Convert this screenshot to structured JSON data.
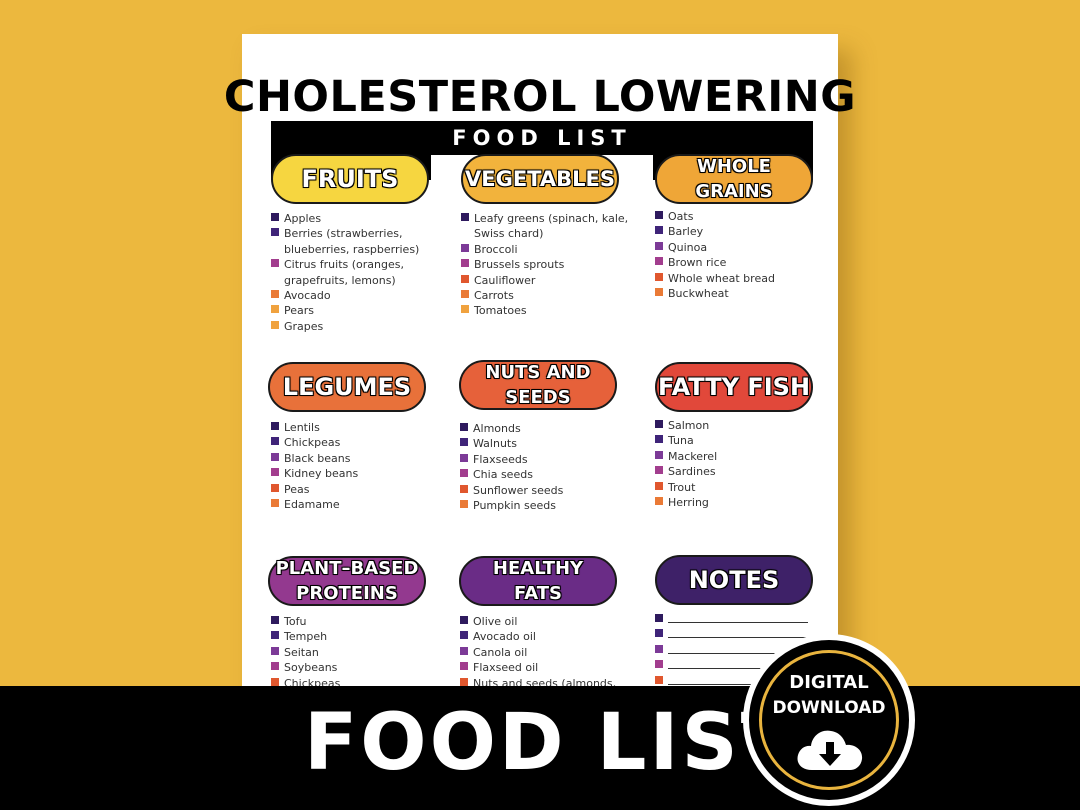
{
  "header": {
    "title": "CHOLESTEROL LOWERING",
    "subtitle": "FOOD LIST"
  },
  "colors": {
    "background": "#ECB83E",
    "bullets": [
      "#2E1A5E",
      "#3F2479",
      "#7C3A97",
      "#A23D8E",
      "#E0572E",
      "#EA7A36",
      "#F0A23E"
    ]
  },
  "sections": [
    {
      "title1": "FRUITS",
      "title2": "",
      "color": "#F6D640",
      "items": [
        "Apples",
        "Berries (strawberries,",
        "blueberries, raspberries)",
        "Citrus fruits (oranges,",
        "grapefruits, lemons)",
        "Avocado",
        "Pears",
        "Grapes"
      ]
    },
    {
      "title1": "VEGETABLES",
      "title2": "",
      "color": "#F2B33C",
      "items": [
        "Leafy greens (spinach, kale,",
        "Swiss chard)",
        "Broccoli",
        "Brussels sprouts",
        "Cauliflower",
        "Carrots",
        "Tomatoes"
      ]
    },
    {
      "title1": "WHOLE",
      "title2": "GRAINS",
      "color": "#EFA637",
      "items": [
        "Oats",
        "Barley",
        "Quinoa",
        "Brown rice",
        "Whole wheat bread",
        "Buckwheat"
      ]
    },
    {
      "title1": "LEGUMES",
      "title2": "",
      "color": "#E8713A",
      "items": [
        "Lentils",
        "Chickpeas",
        "Black beans",
        "Kidney beans",
        "Peas",
        "Edamame"
      ]
    },
    {
      "title1": "NUTS AND",
      "title2": "SEEDS",
      "color": "#E6613A",
      "items": [
        "Almonds",
        "Walnuts",
        "Flaxseeds",
        "Chia seeds",
        "Sunflower seeds",
        "Pumpkin seeds"
      ]
    },
    {
      "title1": "FATTY FISH",
      "title2": "",
      "color": "#E1483A",
      "items": [
        "Salmon",
        "Tuna",
        "Mackerel",
        "Sardines",
        "Trout",
        "Herring"
      ]
    },
    {
      "title1": "PLANT–BASED",
      "title2": "PROTEINS",
      "color": "#93398F",
      "items": [
        "Tofu",
        "Tempeh",
        "Seitan",
        "Soybeans",
        "Chickpeas"
      ]
    },
    {
      "title1": "HEALTHY",
      "title2": "FATS",
      "color": "#6A2C86",
      "items": [
        "Olive oil",
        "Avocado oil",
        "Canola oil",
        "Flaxseed oil",
        "Nuts and seeds (almonds,"
      ]
    },
    {
      "title1": "NOTES",
      "title2": "",
      "color": "#3E2168",
      "items": [
        "",
        "",
        "",
        "",
        ""
      ]
    }
  ],
  "banner": {
    "text": "FOOD LIST",
    "badge_line1": "DIGITAL",
    "badge_line2": "DOWNLOAD",
    "badge_icon": "cloud-download-icon"
  }
}
